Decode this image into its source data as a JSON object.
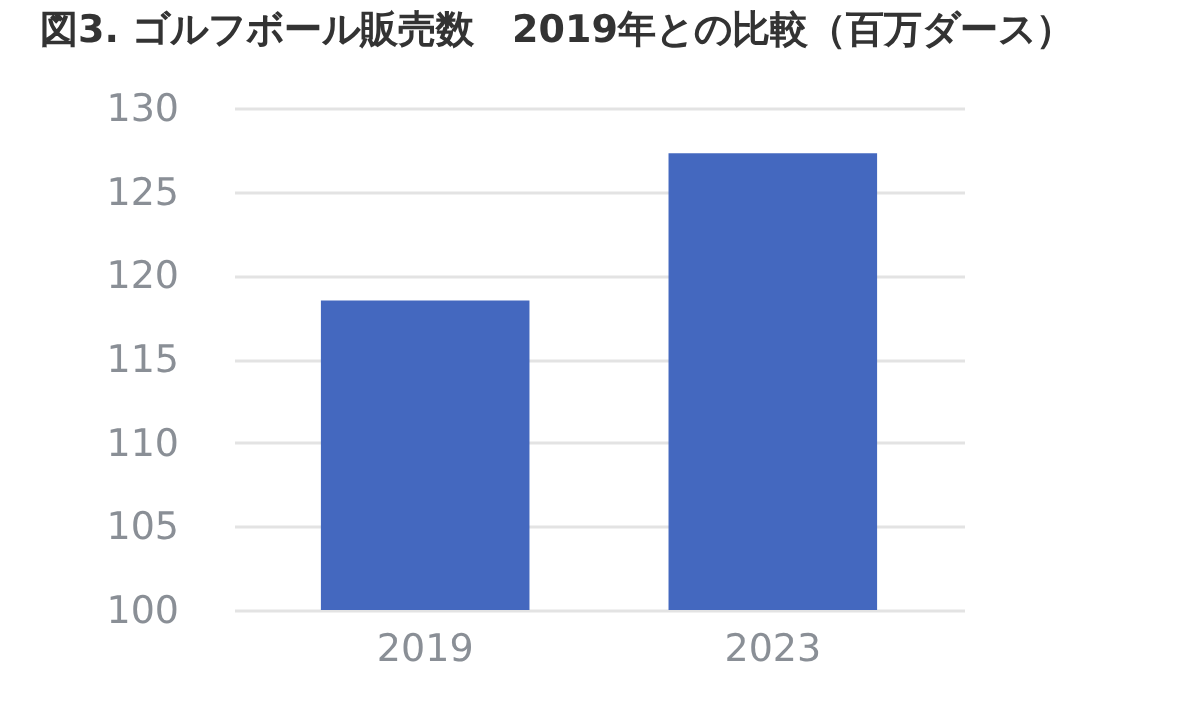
{
  "chart_data": {
    "type": "bar",
    "title": "図3. ゴルフボール販売数　2019年との比較（百万ダース）",
    "categories": [
      "2019",
      "2023"
    ],
    "values": [
      118.5,
      127.3
    ],
    "color": "#4468bf",
    "ylim": [
      100,
      130
    ],
    "yticks": [
      100,
      105,
      110,
      115,
      120,
      125,
      130
    ],
    "grid": "y"
  }
}
